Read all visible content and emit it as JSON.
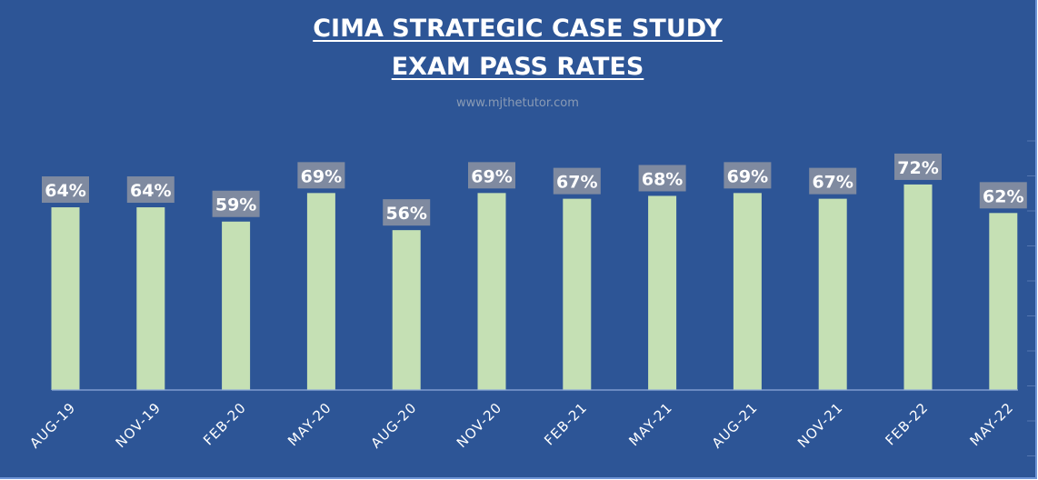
{
  "chart_data": {
    "type": "bar",
    "title": [
      "CIMA STRATEGIC CASE STUDY",
      "EXAM PASS RATES"
    ],
    "subtitle": "www.mjthetutor.com",
    "categories": [
      "AUG-19",
      "NOV-19",
      "FEB-20",
      "MAY-20",
      "AUG-20",
      "NOV-20",
      "FEB-21",
      "MAY-21",
      "AUG-21",
      "NOV-21",
      "FEB-22",
      "MAY-22"
    ],
    "values": [
      64,
      64,
      59,
      69,
      56,
      69,
      67,
      68,
      69,
      67,
      72,
      62
    ],
    "data_labels": [
      "64%",
      "64%",
      "59%",
      "69%",
      "56%",
      "69%",
      "67%",
      "68%",
      "69%",
      "67%",
      "72%",
      "62%"
    ],
    "xlabel": "",
    "ylabel": "",
    "ylim": [
      0,
      100
    ],
    "grid": false,
    "colors": {
      "background": "#2d5596",
      "bar": "#c5e0b4",
      "label_box": "#7f8aa0"
    }
  }
}
